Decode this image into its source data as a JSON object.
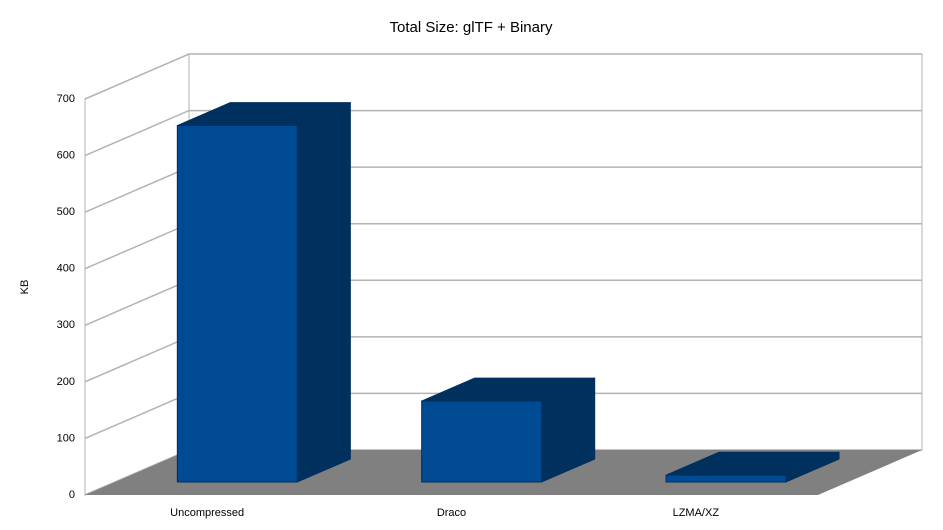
{
  "chart_data": {
    "type": "bar",
    "title": "Total Size: glTF + Binary",
    "y_label": "KB",
    "categories": [
      "Uncompressed",
      "Draco",
      "LZMA/XZ"
    ],
    "values": [
      630,
      143,
      12
    ],
    "color": "#004a94",
    "ylim": [
      0,
      700
    ],
    "yticks": [
      0,
      100,
      200,
      300,
      400,
      500,
      600,
      700
    ],
    "grid": true
  }
}
